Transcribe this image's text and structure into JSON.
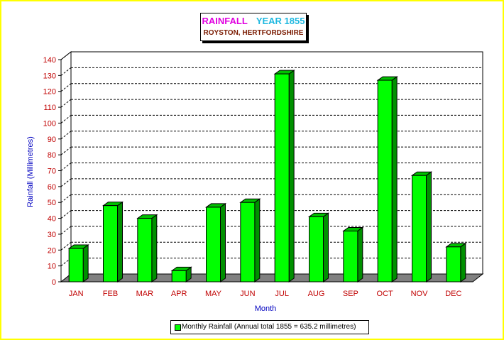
{
  "title": {
    "main": "RAINFALL",
    "year": "YEAR 1855",
    "subtitle": "ROYSTON, HERTFORDSHIRE"
  },
  "legend": {
    "label": "Monthly Rainfall (Annual total 1855 = 635.2 millimetres)"
  },
  "colors": {
    "background": "#ffff00",
    "bar": "#00ff00",
    "floor": "#808080",
    "axis_labels": "#c00000",
    "axis_titles": "#0000c0"
  },
  "chart_data": {
    "type": "bar",
    "categories": [
      "JAN",
      "FEB",
      "MAR",
      "APR",
      "MAY",
      "JUN",
      "JUL",
      "AUG",
      "SEP",
      "OCT",
      "NOV",
      "DEC"
    ],
    "series": [
      {
        "name": "Monthly Rainfall (Annual total 1855 = 635.2 millimetres)",
        "values": [
          21,
          48,
          40,
          7,
          47,
          50,
          131,
          41,
          32,
          127,
          67,
          22
        ]
      }
    ],
    "title": "RAINFALL YEAR 1855",
    "subtitle": "ROYSTON, HERTFORDSHIRE",
    "xlabel": "Month",
    "ylabel": "Rainfall (Millimetres)",
    "ylim": [
      0,
      140
    ],
    "yticks": [
      0,
      10,
      20,
      30,
      40,
      50,
      60,
      70,
      80,
      90,
      100,
      110,
      120,
      130,
      140
    ],
    "grid": true,
    "legend_position": "bottom-center"
  }
}
